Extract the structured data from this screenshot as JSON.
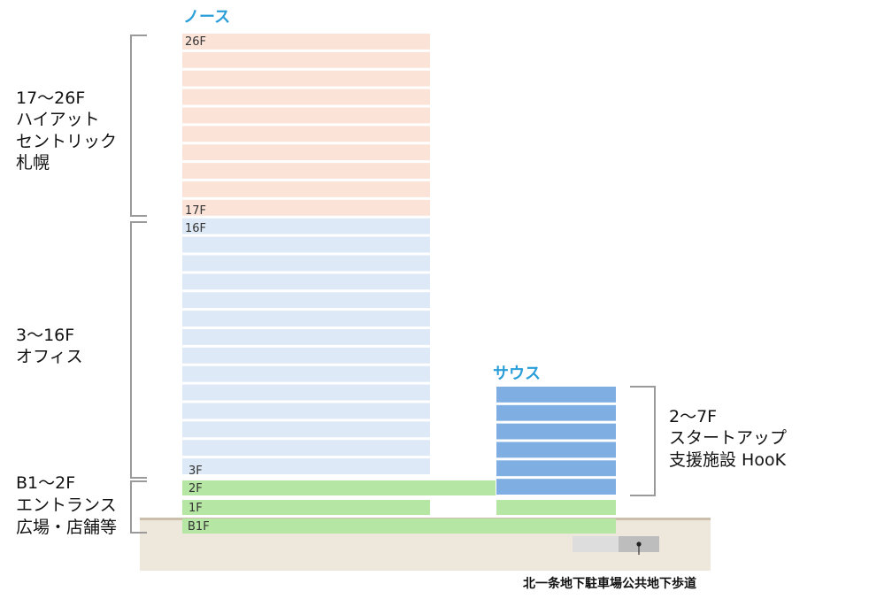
{
  "towers": {
    "north": "ノース",
    "south": "サウス"
  },
  "groups": {
    "hotel": [
      "17〜26F",
      "ハイアット",
      "セントリック",
      "札幌"
    ],
    "office": [
      "3〜16F",
      "オフィス"
    ],
    "entrance": [
      "B1〜2F",
      "エントランス",
      "広場・店舗等"
    ],
    "startup": [
      "2〜7F",
      "スタートアップ",
      "支援施設 HooK"
    ]
  },
  "floor_labels": {
    "f26": "26F",
    "f17": "17F",
    "f16": "16F",
    "f3": "3F",
    "f2": "2F",
    "f1": "1F",
    "fb1": "B1F"
  },
  "underground_walkway": "北一条地下駐車場公共地下歩道",
  "colors": {
    "hotel": "#fbe3d8",
    "office": "#dde9f6",
    "retail": "#b6e6a4",
    "startup": "#7eaee2",
    "ground": "#eee7dc",
    "ground_line": "#cbbfac",
    "bracket": "#9a9a9a",
    "accent": "#2a9ed8"
  }
}
